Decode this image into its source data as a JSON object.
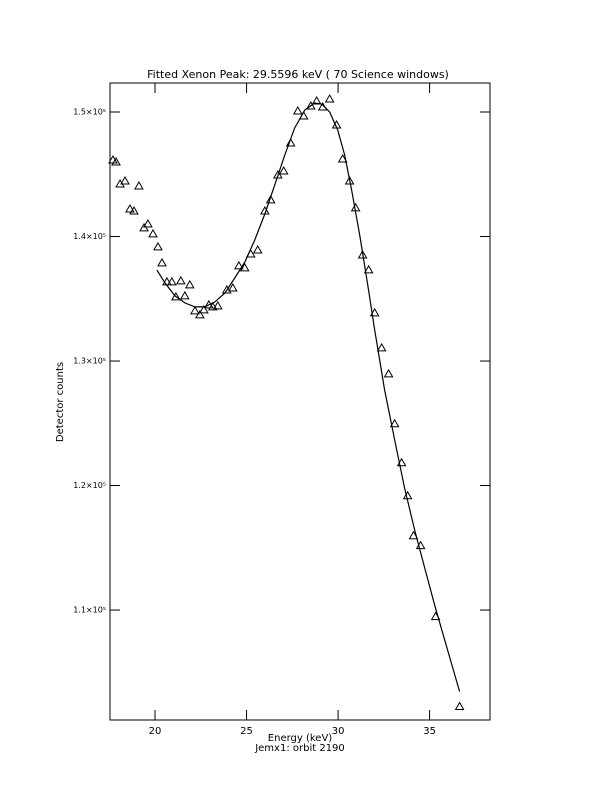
{
  "chart_data": {
    "type": "scatter",
    "title": "Fitted Xenon Peak:       29.5596 keV (      70 Science windows)",
    "x_label": "Energy (keV)",
    "subtitle": "Jemx1: orbit 2190",
    "y_label": "Detector counts",
    "color": "#000000",
    "marker": "triangle",
    "xlim": [
      17.54,
      38.3
    ],
    "ylim": [
      101170,
      152330
    ],
    "xticks": [
      20,
      25,
      30,
      35
    ],
    "yticks": [
      {
        "value": 110000,
        "label": "1.1×10⁵"
      },
      {
        "value": 120000,
        "label": "1.2×10⁵"
      },
      {
        "value": 130000,
        "label": "1.3×10⁵"
      },
      {
        "value": 140000,
        "label": "1.4×10⁵"
      },
      {
        "value": 150000,
        "label": "1.5×10⁵"
      }
    ],
    "points": {
      "x": [
        17.7,
        17.87,
        18.09,
        18.36,
        18.63,
        18.85,
        19.12,
        19.4,
        19.61,
        19.89,
        20.16,
        20.38,
        20.65,
        20.92,
        21.14,
        21.41,
        21.63,
        21.9,
        22.18,
        22.45,
        22.67,
        22.94,
        23.16,
        23.43,
        23.92,
        24.25,
        24.58,
        24.9,
        25.23,
        25.61,
        26.0,
        26.32,
        26.71,
        27.03,
        27.41,
        27.8,
        28.12,
        28.51,
        28.83,
        29.16,
        29.54,
        29.92,
        30.25,
        30.63,
        30.96,
        31.34,
        31.67,
        32.0,
        32.38,
        32.76,
        33.09,
        33.47,
        33.8,
        34.12,
        34.51,
        35.33,
        36.64
      ],
      "values": [
        146150,
        145990,
        144220,
        144460,
        142210,
        142050,
        144060,
        140690,
        141010,
        140210,
        139170,
        137880,
        136360,
        136360,
        135150,
        136440,
        135230,
        136120,
        134030,
        133710,
        134110,
        134510,
        134350,
        134430,
        135710,
        135870,
        137640,
        137480,
        138600,
        138920,
        142050,
        142940,
        144940,
        145260,
        147510,
        150080,
        149680,
        150480,
        150880,
        150400,
        151040,
        148960,
        146230,
        144460,
        142300,
        138520,
        137320,
        133870,
        131060,
        128970,
        124960,
        121830,
        119180,
        115970,
        115170,
        109470,
        102250
      ]
    },
    "fit_curve": {
      "x": [
        20.1,
        20.54,
        21.09,
        21.63,
        22.18,
        22.72,
        23.27,
        23.82,
        24.36,
        24.91,
        25.45,
        26.0,
        26.54,
        27.09,
        27.63,
        28.18,
        28.73,
        29.11,
        29.54,
        29.98,
        30.36,
        30.74,
        31.18,
        31.62,
        32.0,
        32.54,
        33.09,
        33.63,
        34.18,
        34.73,
        35.27,
        35.82,
        36.64
      ],
      "values": [
        137320,
        136280,
        135230,
        134670,
        134350,
        134350,
        134750,
        135470,
        136680,
        137960,
        139730,
        141810,
        144140,
        146550,
        148720,
        150160,
        150720,
        150640,
        150000,
        148560,
        146550,
        143740,
        140130,
        136120,
        132500,
        127690,
        123680,
        119820,
        116450,
        113400,
        110430,
        107620,
        103450
      ]
    }
  }
}
